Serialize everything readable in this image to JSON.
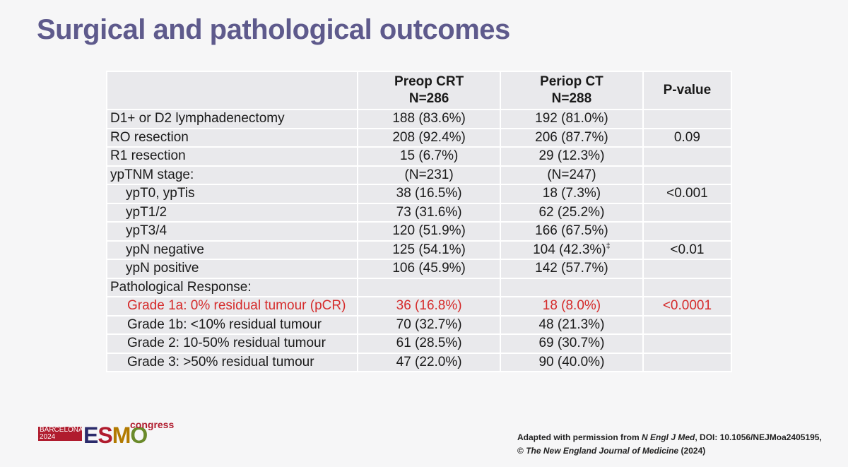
{
  "title": "Surgical and pathological outcomes",
  "table": {
    "headers": [
      "",
      [
        "Preop CRT",
        "N=286"
      ],
      [
        "Periop CT",
        "N=288"
      ],
      "P-value"
    ],
    "rows": [
      {
        "label": "D1+ or D2 lymphadenectomy",
        "indent": 0,
        "crt": "188 (83.6%)",
        "ct": "192 (81.0%)",
        "p": ""
      },
      {
        "label": "RO resection",
        "indent": 0,
        "crt": "208 (92.4%)",
        "ct": "206 (87.7%)",
        "p": "0.09"
      },
      {
        "label": "R1 resection",
        "indent": 0,
        "crt": "15 (6.7%)",
        "ct": "29 (12.3%)",
        "p": ""
      },
      {
        "label": "ypTNM stage:",
        "indent": 0,
        "crt": "(N=231)",
        "ct": "(N=247)",
        "p": ""
      },
      {
        "label": "ypT0, ypTis",
        "indent": 1,
        "crt": "38 (16.5%)",
        "ct": "18 (7.3%)",
        "p": "<0.001"
      },
      {
        "label": "ypT1/2",
        "indent": 1,
        "crt": "73 (31.6%)",
        "ct": "62 (25.2%)",
        "p": ""
      },
      {
        "label": "ypT3/4",
        "indent": 1,
        "crt": "120 (51.9%)",
        "ct": "166 (67.5%)",
        "p": ""
      },
      {
        "label": "ypN negative",
        "indent": 1,
        "crt": "125 (54.1%)",
        "ct": "104 (42.3%)",
        "ct_sup": "‡",
        "p": "<0.01"
      },
      {
        "label": "ypN positive",
        "indent": 1,
        "crt": "106 (45.9%)",
        "ct": "142 (57.7%)",
        "p": ""
      },
      {
        "label": "Pathological Response:",
        "indent": 0,
        "crt": "",
        "ct": "",
        "p": ""
      },
      {
        "label": "Grade 1a: 0% residual tumour (pCR)",
        "indent": 2,
        "crt": "36 (16.8%)",
        "ct": "18 (8.0%)",
        "p": "<0.0001",
        "highlight": true
      },
      {
        "label": "Grade 1b: <10% residual tumour",
        "indent": 2,
        "crt": "70 (32.7%)",
        "ct": "48 (21.3%)",
        "p": ""
      },
      {
        "label": "Grade 2: 10-50% residual tumour",
        "indent": 2,
        "crt": "61 (28.5%)",
        "ct": "69 (30.7%)",
        "p": ""
      },
      {
        "label": "Grade 3: >50% residual tumour",
        "indent": 2,
        "crt": "47 (22.0%)",
        "ct": "90 (40.0%)",
        "p": ""
      }
    ]
  },
  "logo": {
    "city_line1": "BARCELONA",
    "city_line2": "2024",
    "brand": "ESMO",
    "suffix": "congress"
  },
  "citation": {
    "prefix": "Adapted with permission from ",
    "journal_abbrev": "N Engl J Med",
    "doi": ", DOI: 10.1056/NEJMoa2405195,",
    "copyright_symbol": "© ",
    "journal_full": "The New England Journal of Medicine",
    "year": " (2024)"
  },
  "colors": {
    "title": "#5e5a8c",
    "cell_bg": "#e9e9ec",
    "highlight": "#d52b2b",
    "brand_red": "#b01c2e"
  }
}
